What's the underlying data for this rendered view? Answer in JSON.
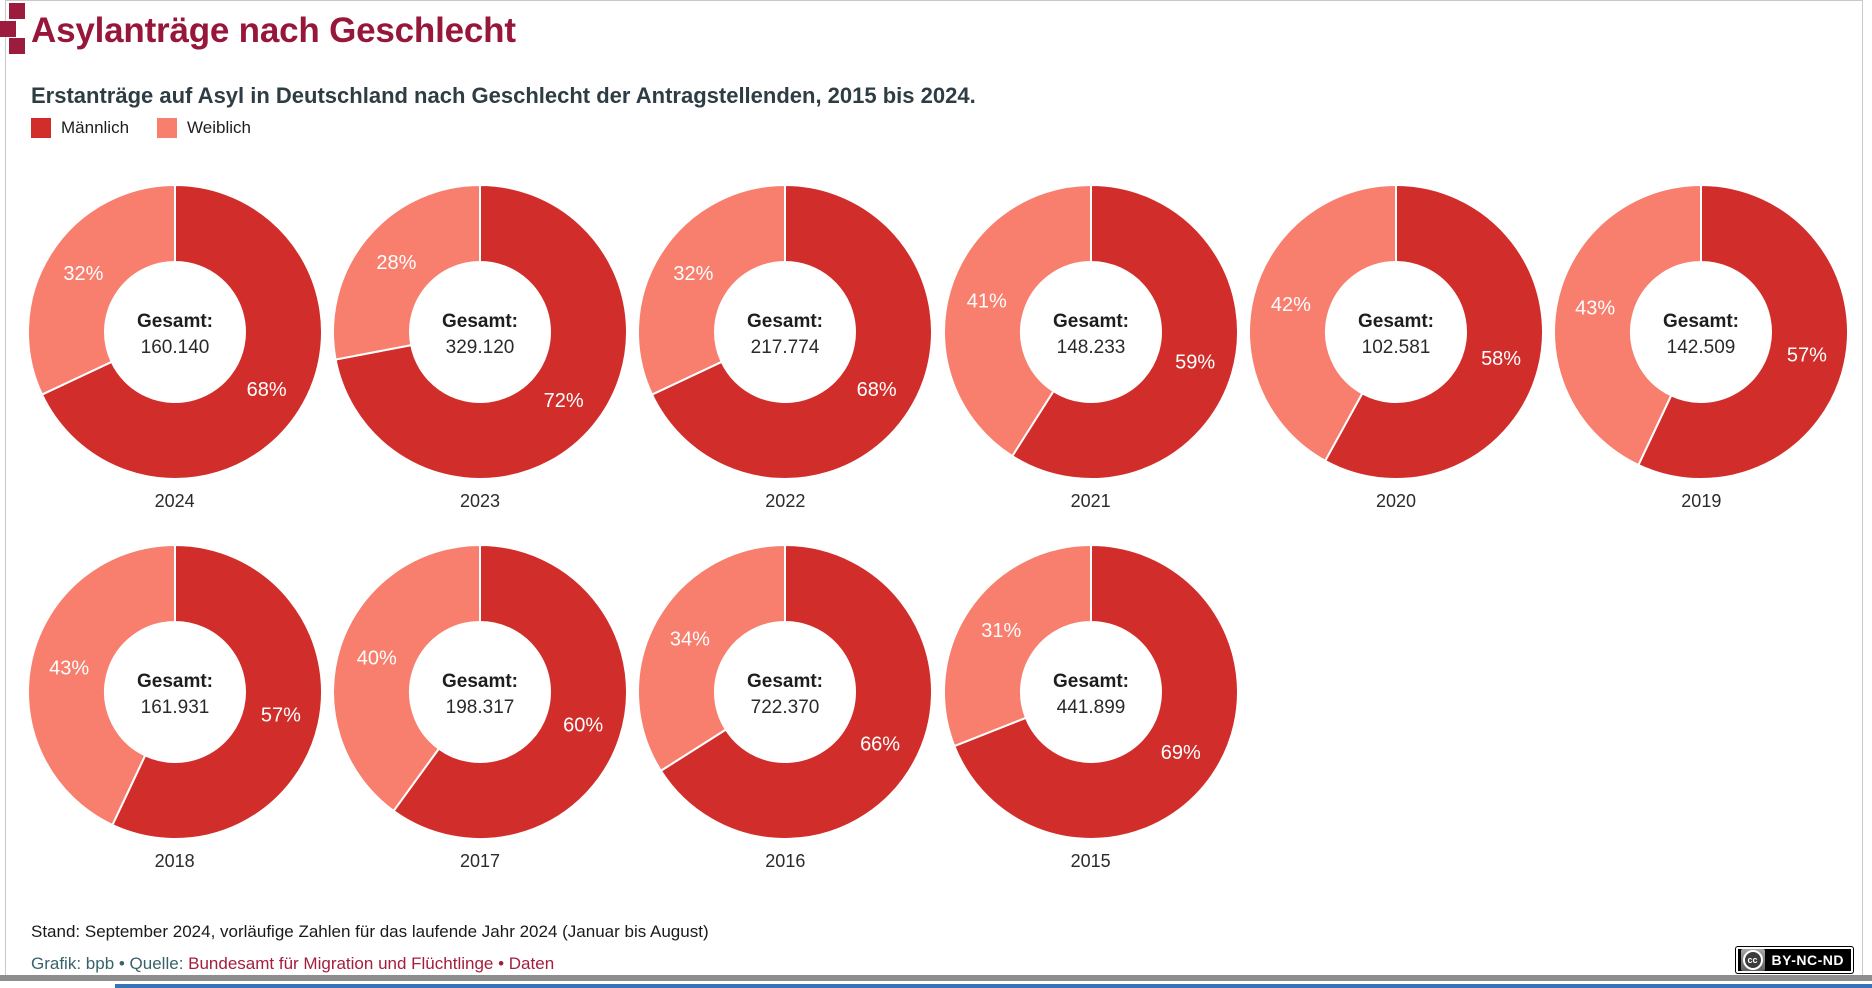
{
  "header": {
    "title": "Asylanträge nach Geschlecht",
    "subtitle": "Erstanträge auf Asyl in Deutschland nach Geschlecht der Antragstellenden, 2015 bis 2024.",
    "legend": [
      {
        "label": "Männlich",
        "key": "male"
      },
      {
        "label": "Weiblich",
        "key": "female"
      }
    ]
  },
  "chart_data": {
    "type": "pie",
    "variant": "donut",
    "series_labels": [
      "Männlich",
      "Weiblich"
    ],
    "colors": {
      "male": "#d12e2b",
      "female": "#f87e6e"
    },
    "center_label": "Gesamt:",
    "unit": "%",
    "years": [
      {
        "year": "2024",
        "total": "160.140",
        "male_pct": 68,
        "female_pct": 32
      },
      {
        "year": "2023",
        "total": "329.120",
        "male_pct": 72,
        "female_pct": 28
      },
      {
        "year": "2022",
        "total": "217.774",
        "male_pct": 68,
        "female_pct": 32
      },
      {
        "year": "2021",
        "total": "148.233",
        "male_pct": 59,
        "female_pct": 41
      },
      {
        "year": "2020",
        "total": "102.581",
        "male_pct": 58,
        "female_pct": 42
      },
      {
        "year": "2019",
        "total": "142.509",
        "male_pct": 57,
        "female_pct": 43
      },
      {
        "year": "2018",
        "total": "161.931",
        "male_pct": 57,
        "female_pct": 43
      },
      {
        "year": "2017",
        "total": "198.317",
        "male_pct": 60,
        "female_pct": 40
      },
      {
        "year": "2016",
        "total": "722.370",
        "male_pct": 66,
        "female_pct": 34
      },
      {
        "year": "2015",
        "total": "441.899",
        "male_pct": 69,
        "female_pct": 31
      }
    ]
  },
  "footer": {
    "note": "Stand: September 2024, vorläufige Zahlen für das laufende Jahr 2024 (Januar bis August)",
    "credit_prefix": "Grafik: bpb • Quelle: ",
    "source_link": "Bundesamt für Migration und Flüchtlinge",
    "separator": " • ",
    "data_link": "Daten",
    "license_icon": "cc",
    "license_badge": "BY-NC-ND"
  }
}
